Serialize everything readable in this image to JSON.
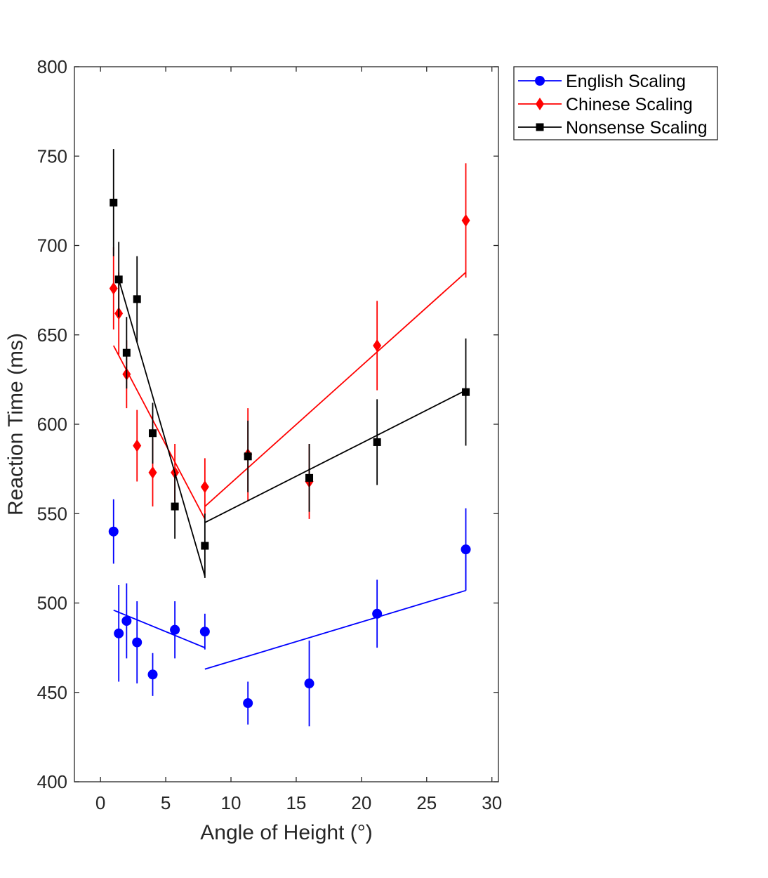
{
  "chart_data": {
    "type": "scatter",
    "title": "",
    "xlabel": "Angle of Height (°)",
    "ylabel": "Reaction Time (ms)",
    "xlim": [
      -2,
      30.5
    ],
    "ylim": [
      400,
      800
    ],
    "xticks": [
      0,
      5,
      10,
      15,
      20,
      25,
      30
    ],
    "yticks": [
      400,
      450,
      500,
      550,
      600,
      650,
      700,
      750,
      800
    ],
    "grid": false,
    "legend_position": "outside-top-right",
    "series": [
      {
        "name": "English Scaling",
        "color": "#0000ff",
        "marker": "circle",
        "points": [
          {
            "x": 1.0,
            "y": 540,
            "err": 18
          },
          {
            "x": 1.4,
            "y": 483,
            "err": 27
          },
          {
            "x": 2.0,
            "y": 490,
            "err": 21
          },
          {
            "x": 2.8,
            "y": 478,
            "err": 23
          },
          {
            "x": 4.0,
            "y": 460,
            "err": 12
          },
          {
            "x": 5.7,
            "y": 485,
            "err": 16
          },
          {
            "x": 8.0,
            "y": 484,
            "err": 10
          },
          {
            "x": 11.3,
            "y": 444,
            "err": 12
          },
          {
            "x": 16.0,
            "y": 455,
            "err": 24
          },
          {
            "x": 21.2,
            "y": 494,
            "err": 19
          },
          {
            "x": 28.0,
            "y": 530,
            "err": 23
          }
        ],
        "fit_segments": [
          [
            [
              1.0,
              496
            ],
            [
              8.0,
              475
            ]
          ],
          [
            [
              8.0,
              463
            ],
            [
              28.0,
              507
            ]
          ]
        ],
        "connector": [
          [
            28.0,
            507
          ],
          [
            28.0,
            530
          ]
        ]
      },
      {
        "name": "Chinese Scaling",
        "color": "#ff0000",
        "marker": "diamond",
        "points": [
          {
            "x": 1.0,
            "y": 676,
            "err": 23
          },
          {
            "x": 1.4,
            "y": 662,
            "err": 23
          },
          {
            "x": 2.0,
            "y": 628,
            "err": 19
          },
          {
            "x": 2.8,
            "y": 588,
            "err": 20
          },
          {
            "x": 4.0,
            "y": 573,
            "err": 19
          },
          {
            "x": 5.7,
            "y": 573,
            "err": 16
          },
          {
            "x": 8.0,
            "y": 565,
            "err": 16
          },
          {
            "x": 11.3,
            "y": 583,
            "err": 26
          },
          {
            "x": 16.0,
            "y": 568,
            "err": 21
          },
          {
            "x": 21.2,
            "y": 644,
            "err": 25
          },
          {
            "x": 28.0,
            "y": 714,
            "err": 32
          }
        ],
        "fit_segments": [
          [
            [
              1.0,
              644
            ],
            [
              8.0,
              547
            ]
          ],
          [
            [
              8.0,
              554
            ],
            [
              28.0,
              685
            ]
          ]
        ],
        "connector": null
      },
      {
        "name": "Nonsense Scaling",
        "color": "#000000",
        "marker": "square",
        "points": [
          {
            "x": 1.0,
            "y": 724,
            "err": 30
          },
          {
            "x": 1.4,
            "y": 681,
            "err": 21
          },
          {
            "x": 2.0,
            "y": 640,
            "err": 20
          },
          {
            "x": 2.8,
            "y": 670,
            "err": 24
          },
          {
            "x": 4.0,
            "y": 595,
            "err": 17
          },
          {
            "x": 5.7,
            "y": 554,
            "err": 18
          },
          {
            "x": 8.0,
            "y": 532,
            "err": 18
          },
          {
            "x": 11.3,
            "y": 582,
            "err": 20
          },
          {
            "x": 16.0,
            "y": 570,
            "err": 19
          },
          {
            "x": 21.2,
            "y": 590,
            "err": 24
          },
          {
            "x": 28.0,
            "y": 618,
            "err": 30
          }
        ],
        "fit_segments": [
          [
            [
              1.4,
              681
            ],
            [
              8.0,
              515
            ]
          ],
          [
            [
              8.0,
              545
            ],
            [
              28.0,
              619
            ]
          ]
        ],
        "connector": null
      }
    ]
  }
}
